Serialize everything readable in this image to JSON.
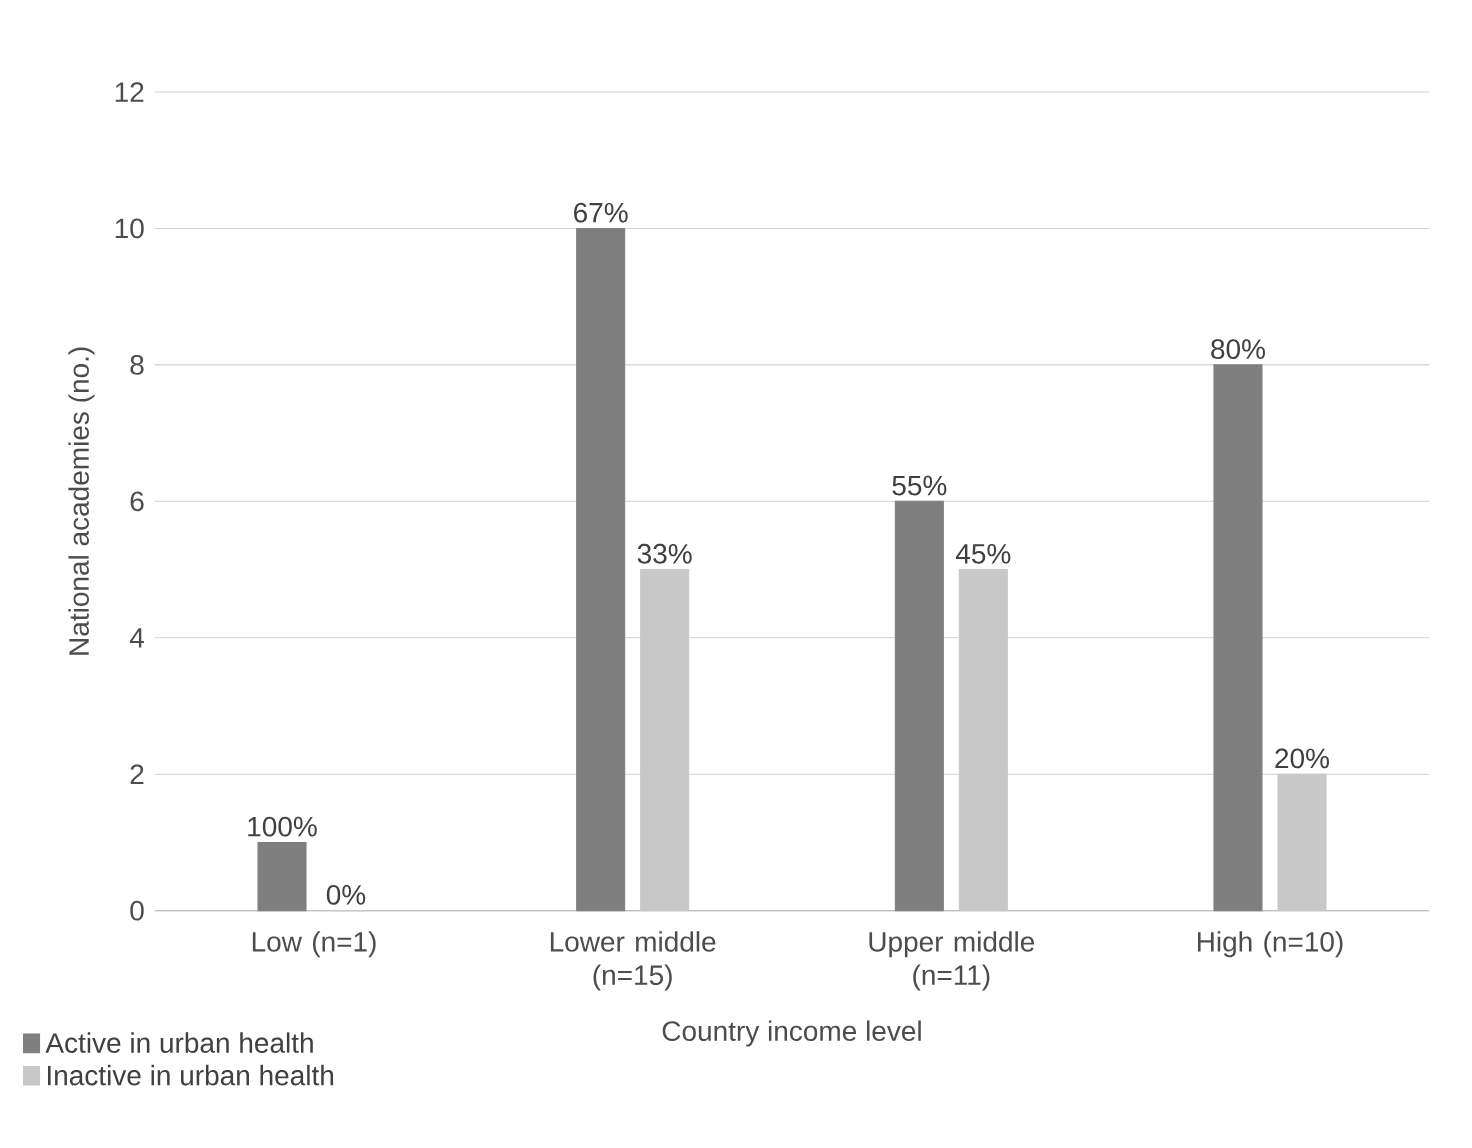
{
  "chart_data": {
    "type": "bar",
    "xlabel": "Country income level",
    "ylabel": "National academies (no.)",
    "categories": [
      "Low (n=1)",
      "Lower middle (n=15)",
      "Upper middle (n=11)",
      "High (n=10)"
    ],
    "series": [
      {
        "name": "Active in urban health",
        "color": "#7f7f7f",
        "values": [
          1,
          10,
          6,
          8
        ]
      },
      {
        "name": "Inactive in urban health",
        "color": "#c8c8c8",
        "values": [
          0,
          5,
          5,
          2
        ]
      }
    ],
    "annotations": [
      {
        "text": "100%",
        "x": "Low (n=1)",
        "y": 1
      },
      {
        "text": "67%",
        "x": "Lower middle (n=15)",
        "y": 10
      },
      {
        "text": "55%",
        "x": "Upper middle (n=11)",
        "y": 6
      },
      {
        "text": "80%",
        "x": "High (n=10)",
        "y": 8
      },
      {
        "text": "0%",
        "x": "Low (n=1)",
        "y": 0
      },
      {
        "text": "33%",
        "x": "Lower middle (n=15)",
        "y": 5
      },
      {
        "text": "45%",
        "x": "Upper middle (n=11)",
        "y": 5
      },
      {
        "text": "20%",
        "x": "High (n=10)",
        "y": 2
      }
    ],
    "ylim": [
      0,
      12
    ],
    "yticks": [
      0,
      2,
      4,
      6,
      8,
      10,
      12
    ],
    "grid": "y",
    "legend": "bottom left"
  }
}
